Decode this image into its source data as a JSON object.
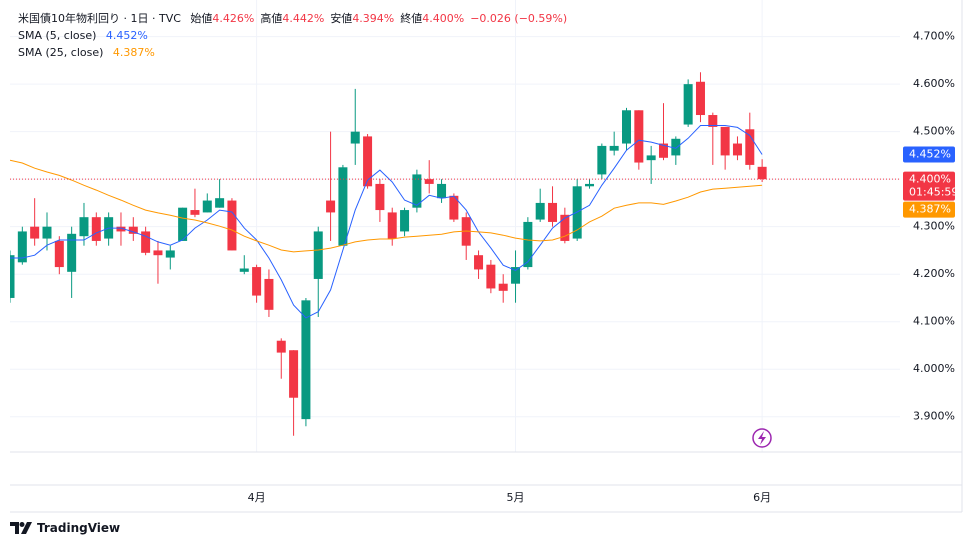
{
  "header": {
    "title": "米国債10年物利回り · 1日 · TVC",
    "quotes": [
      {
        "label": "始値",
        "value": "4.426%"
      },
      {
        "label": "高値",
        "value": "4.442%"
      },
      {
        "label": "安値",
        "value": "4.394%"
      },
      {
        "label": "終値",
        "value": "4.400%"
      }
    ],
    "change": "−0.026 (−0.59%)"
  },
  "chart_data": {
    "type": "candlestick",
    "categories": [
      null,
      null,
      null,
      null,
      null,
      null,
      null,
      null,
      null,
      null,
      null,
      null,
      null,
      null,
      null,
      null,
      null,
      null,
      null,
      null,
      "4月",
      null,
      null,
      null,
      null,
      null,
      null,
      null,
      null,
      null,
      null,
      null,
      null,
      null,
      null,
      null,
      null,
      null,
      null,
      null,
      null,
      "5月",
      null,
      null,
      null,
      null,
      null,
      null,
      null,
      null,
      null,
      null,
      null,
      null,
      null,
      null,
      null,
      null,
      null,
      null,
      null,
      "6月"
    ],
    "candles": {
      "open": [
        4.15,
        4.225,
        4.3,
        4.275,
        4.27,
        4.205,
        4.28,
        4.32,
        4.275,
        4.3,
        4.3,
        4.29,
        4.25,
        4.235,
        4.27,
        4.335,
        4.33,
        4.34,
        4.355,
        4.205,
        4.215,
        4.19,
        4.06,
        4.04,
        3.895,
        4.19,
        4.355,
        4.26,
        4.475,
        4.49,
        4.39,
        4.33,
        4.29,
        4.34,
        4.4,
        4.36,
        4.365,
        4.32,
        4.24,
        4.22,
        4.18,
        4.18,
        4.215,
        4.315,
        4.35,
        4.325,
        4.275,
        4.385,
        4.41,
        4.46,
        4.475,
        4.545,
        4.44,
        4.475,
        4.45,
        4.515,
        4.605,
        4.535,
        4.51,
        4.475,
        4.505,
        4.426
      ],
      "high": [
        4.25,
        4.3,
        4.36,
        4.33,
        4.28,
        4.3,
        4.35,
        4.33,
        4.33,
        4.33,
        4.32,
        4.3,
        4.27,
        4.26,
        4.34,
        4.38,
        4.37,
        4.4,
        4.36,
        4.24,
        4.22,
        4.21,
        4.065,
        4.04,
        4.15,
        4.3,
        4.5,
        4.43,
        4.59,
        4.495,
        4.4,
        4.34,
        4.34,
        4.42,
        4.44,
        4.4,
        4.37,
        4.33,
        4.25,
        4.23,
        4.2,
        4.25,
        4.32,
        4.38,
        4.385,
        4.34,
        4.4,
        4.4,
        4.475,
        4.5,
        4.55,
        4.545,
        4.47,
        4.56,
        4.49,
        4.61,
        4.625,
        4.54,
        4.51,
        4.49,
        4.54,
        4.442
      ],
      "low": [
        4.14,
        4.22,
        4.26,
        4.25,
        4.2,
        4.15,
        4.26,
        4.26,
        4.26,
        4.26,
        4.27,
        4.24,
        4.18,
        4.21,
        4.27,
        4.32,
        4.33,
        4.34,
        4.25,
        4.2,
        4.14,
        4.11,
        3.98,
        3.86,
        3.88,
        4.11,
        4.27,
        4.26,
        4.43,
        4.38,
        4.31,
        4.26,
        4.28,
        4.33,
        4.37,
        4.35,
        4.31,
        4.23,
        4.19,
        4.16,
        4.14,
        4.14,
        4.21,
        4.31,
        4.3,
        4.265,
        4.27,
        4.38,
        4.4,
        4.45,
        4.46,
        4.42,
        4.39,
        4.44,
        4.43,
        4.51,
        4.52,
        4.43,
        4.42,
        4.44,
        4.42,
        4.394
      ],
      "close": [
        4.24,
        4.29,
        4.275,
        4.3,
        4.215,
        4.285,
        4.32,
        4.27,
        4.32,
        4.29,
        4.285,
        4.245,
        4.24,
        4.25,
        4.34,
        4.325,
        4.355,
        4.36,
        4.25,
        4.212,
        4.155,
        4.125,
        4.035,
        3.94,
        4.145,
        4.29,
        4.33,
        4.425,
        4.5,
        4.385,
        4.335,
        4.275,
        4.335,
        4.41,
        4.39,
        4.39,
        4.315,
        4.26,
        4.21,
        4.17,
        4.165,
        4.215,
        4.31,
        4.35,
        4.31,
        4.27,
        4.385,
        4.39,
        4.47,
        4.47,
        4.545,
        4.435,
        4.45,
        4.445,
        4.485,
        4.6,
        4.535,
        4.51,
        4.45,
        4.45,
        4.43,
        4.4
      ]
    },
    "up_color": "#089981",
    "down_color": "#f23645",
    "last_label": "4.400%",
    "countdown": "01:45:59",
    "series": [
      {
        "name": "SMA (5, close)",
        "color": "#2962ff",
        "last_label": "4.452%",
        "values": [
          4.234,
          4.234,
          4.24,
          4.261,
          4.272,
          4.272,
          4.272,
          4.287,
          4.297,
          4.297,
          4.289,
          4.28,
          4.268,
          4.261,
          4.272,
          4.297,
          4.314,
          4.335,
          4.331,
          4.297,
          4.272,
          4.234,
          4.188,
          4.135,
          4.108,
          4.121,
          4.167,
          4.251,
          4.335,
          4.398,
          4.419,
          4.394,
          4.356,
          4.345,
          4.366,
          4.36,
          4.364,
          4.335,
          4.289,
          4.255,
          4.219,
          4.208,
          4.226,
          4.261,
          4.297,
          4.318,
          4.331,
          4.345,
          4.387,
          4.423,
          4.461,
          4.482,
          4.478,
          4.471,
          4.465,
          4.486,
          4.513,
          4.513,
          4.513,
          4.509,
          4.492,
          4.452
        ]
      },
      {
        "name": "SMA (25, close)",
        "color": "#ff9800",
        "last_label": "4.387%",
        "values": [
          4.44,
          4.434,
          4.423,
          4.415,
          4.408,
          4.398,
          4.387,
          4.377,
          4.366,
          4.356,
          4.345,
          4.335,
          4.329,
          4.324,
          4.318,
          4.314,
          4.308,
          4.301,
          4.293,
          4.28,
          4.27,
          4.261,
          4.251,
          4.247,
          4.249,
          4.251,
          4.255,
          4.261,
          4.268,
          4.272,
          4.274,
          4.274,
          4.278,
          4.28,
          4.282,
          4.284,
          4.289,
          4.291,
          4.289,
          4.287,
          4.282,
          4.276,
          4.272,
          4.27,
          4.272,
          4.28,
          4.293,
          4.31,
          4.322,
          4.339,
          4.345,
          4.35,
          4.35,
          4.347,
          4.354,
          4.362,
          4.373,
          4.379,
          4.381,
          4.383,
          4.385,
          4.387
        ]
      }
    ],
    "ylim": [
      3.83,
      4.735
    ],
    "yticks": [
      {
        "value": 3.9,
        "label": "3.900%"
      },
      {
        "value": 4.0,
        "label": "4.000%"
      },
      {
        "value": 4.1,
        "label": "4.100%"
      },
      {
        "value": 4.2,
        "label": "4.200%"
      },
      {
        "value": 4.3,
        "label": "4.300%"
      },
      {
        "value": 4.4,
        "label": "4.400%"
      },
      {
        "value": 4.5,
        "label": "4.500%"
      },
      {
        "value": 4.6,
        "label": "4.600%"
      },
      {
        "value": 4.7,
        "label": "4.700%"
      }
    ],
    "grid": true
  },
  "branding": "TradingView"
}
